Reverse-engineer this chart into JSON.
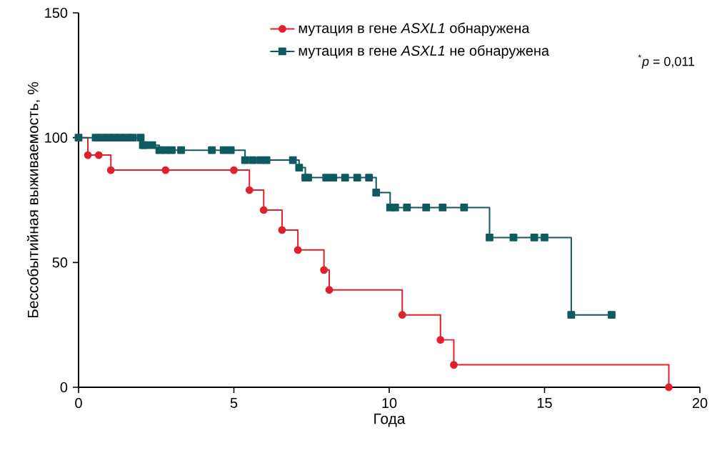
{
  "chart_data": {
    "type": "step",
    "xlabel": "Года",
    "ylabel": "Бессобытийная выживаемость, %",
    "xlim": [
      0,
      20
    ],
    "ylim": [
      0,
      150
    ],
    "xticks": [
      0,
      5,
      10,
      15,
      20
    ],
    "yticks": [
      0,
      50,
      100,
      150
    ],
    "legend": "top right",
    "annotations": [
      "$^{*}$*p* = 0,011"
    ],
    "series": [
      {
        "name": "мутация в гене *ASXL1* обнаружена",
        "color": "#e0202e",
        "marker": "circle",
        "x": [
          0,
          0.3,
          0.65,
          1.04,
          2.8,
          5.0,
          5.5,
          5.96,
          6.55,
          7.06,
          7.9,
          8.07,
          10.42,
          11.65,
          12.08,
          19.0
        ],
        "values": [
          100,
          93,
          93,
          87,
          87,
          87,
          79,
          71,
          63,
          55,
          47,
          39,
          29,
          19,
          9,
          0
        ]
      },
      {
        "name": "мутация в гене *ASXL1* не обнаружена",
        "color": "#0f5a5e",
        "marker": "square",
        "x": [
          0,
          0.55,
          0.75,
          0.95,
          1.15,
          1.35,
          1.55,
          1.75,
          2.0,
          2.07,
          2.14,
          2.37,
          2.6,
          2.8,
          3.0,
          3.3,
          4.29,
          4.67,
          4.9,
          5.36,
          5.6,
          5.85,
          6.05,
          6.9,
          7.1,
          7.3,
          7.39,
          7.97,
          8.2,
          8.58,
          8.97,
          9.35,
          9.58,
          10.03,
          10.19,
          10.57,
          11.19,
          11.72,
          12.41,
          13.23,
          14.0,
          14.67,
          15.0,
          15.86,
          17.16
        ],
        "values": [
          100,
          100,
          100,
          100,
          100,
          100,
          100,
          100,
          100,
          97,
          97,
          97,
          95,
          95,
          95,
          95,
          95,
          95,
          95,
          91,
          91,
          91,
          91,
          91,
          88,
          84,
          84,
          84,
          84,
          84,
          84,
          84,
          78,
          72,
          72,
          72,
          72,
          72,
          72,
          60,
          60,
          60,
          60,
          29,
          29
        ]
      }
    ]
  }
}
